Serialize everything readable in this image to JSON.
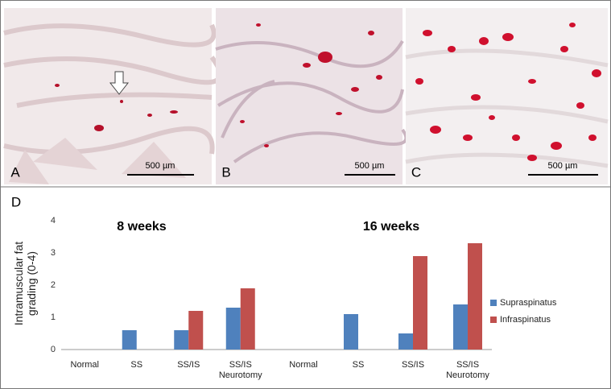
{
  "images": [
    {
      "label": "A",
      "scale_bar": "500 µm"
    },
    {
      "label": "B",
      "scale_bar": "500 µm"
    },
    {
      "label": "C",
      "scale_bar": "500 µm"
    }
  ],
  "chart_data": {
    "type": "bar",
    "panel_label": "D",
    "y_label": "Intramuscular fat grading (0-4)",
    "ylim": [
      0,
      4
    ],
    "yticks": [
      0,
      1,
      2,
      3,
      4
    ],
    "panels": [
      "8 weeks",
      "16 weeks"
    ],
    "categories": [
      "Normal",
      "SS",
      "SS/IS",
      "SS/IS Neurotomy"
    ],
    "series": [
      {
        "name": "Supraspinatus",
        "color": "#4f81bd",
        "values": [
          [
            0,
            0.6,
            0.6,
            1.3
          ],
          [
            0,
            1.1,
            0.5,
            1.4
          ]
        ]
      },
      {
        "name": "Infraspinatus",
        "color": "#c0504d",
        "values": [
          [
            0,
            0,
            1.2,
            1.9
          ],
          [
            0,
            0,
            2.9,
            3.3
          ]
        ]
      }
    ]
  }
}
